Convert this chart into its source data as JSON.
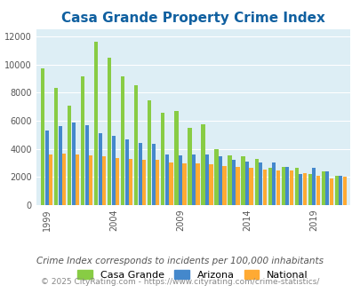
{
  "title": "Casa Grande Property Crime Index",
  "title_color": "#1060a0",
  "bg_color": "#ddeef5",
  "years": [
    1999,
    2000,
    2001,
    2002,
    2003,
    2004,
    2005,
    2006,
    2007,
    2008,
    2009,
    2010,
    2011,
    2012,
    2013,
    2014,
    2015,
    2016,
    2017,
    2018,
    2019,
    2020,
    2021
  ],
  "casa_grande": [
    9700,
    8350,
    7100,
    9150,
    11600,
    10450,
    9150,
    8500,
    7450,
    6550,
    6700,
    5500,
    5750,
    4000,
    3550,
    3500,
    3300,
    2650,
    2700,
    2650,
    2200,
    2400,
    2100
  ],
  "arizona": [
    5300,
    5600,
    5900,
    5700,
    5100,
    4900,
    4650,
    4450,
    4350,
    3600,
    3550,
    3600,
    3600,
    3450,
    3200,
    3100,
    3000,
    3000,
    2700,
    2200,
    2650,
    2400,
    2100
  ],
  "national": [
    3600,
    3650,
    3600,
    3550,
    3450,
    3350,
    3300,
    3250,
    3200,
    3000,
    2950,
    2950,
    2900,
    2800,
    2700,
    2650,
    2500,
    2450,
    2450,
    2300,
    2100,
    1900,
    2050
  ],
  "casa_color": "#88cc44",
  "arizona_color": "#4488cc",
  "national_color": "#ffaa33",
  "ylabel_ticks": [
    0,
    2000,
    4000,
    6000,
    8000,
    10000,
    12000
  ],
  "xtick_years": [
    1999,
    2004,
    2009,
    2014,
    2019
  ],
  "subtitle": "Crime Index corresponds to incidents per 100,000 inhabitants",
  "footer": "© 2025 CityRating.com - https://www.cityrating.com/crime-statistics/",
  "subtitle_color": "#555555",
  "footer_color": "#888888"
}
